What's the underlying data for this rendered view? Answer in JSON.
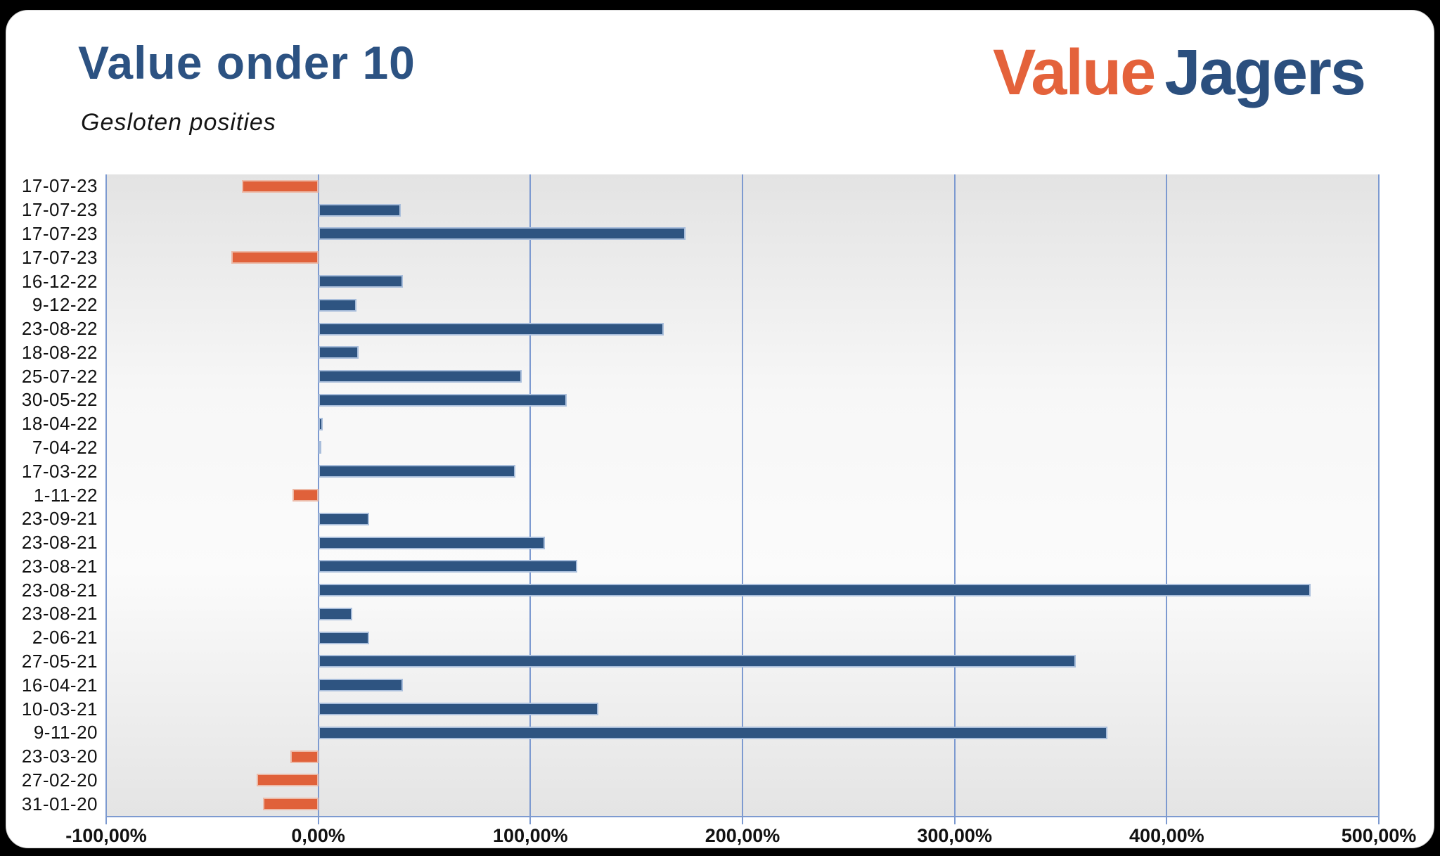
{
  "header": {
    "title": "Value onder 10",
    "subtitle": "Gesloten posities",
    "logo": {
      "part1": "Value",
      "part2": "Jagers"
    }
  },
  "chart_data": {
    "type": "bar",
    "orientation": "horizontal",
    "title": "Value onder 10",
    "subtitle": "Gesloten posities",
    "unit": "percent",
    "categories": [
      "17-07-23",
      "17-07-23",
      "17-07-23",
      "17-07-23",
      "16-12-22",
      "9-12-22",
      "23-08-22",
      "18-08-22",
      "25-07-22",
      "30-05-22",
      "18-04-22",
      "7-04-22",
      "17-03-22",
      "1-11-22",
      "23-09-21",
      "23-08-21",
      "23-08-21",
      "23-08-21",
      "23-08-21",
      "2-06-21",
      "27-05-21",
      "16-04-21",
      "10-03-21",
      "9-11-20",
      "23-03-20",
      "27-02-20",
      "31-01-20"
    ],
    "values": [
      -36,
      39,
      173,
      -41,
      40,
      18,
      163,
      19,
      96,
      117,
      2,
      1,
      93,
      -12,
      24,
      107,
      122,
      468,
      16,
      24,
      357,
      40,
      132,
      372,
      -13,
      -29,
      -26
    ],
    "x_axis": {
      "min": -100,
      "max": 500,
      "tick_step": 100,
      "tick_labels": [
        "-100,00%",
        "0,00%",
        "100,00%",
        "200,00%",
        "300,00%",
        "400,00%",
        "500,00%"
      ]
    },
    "grid": true,
    "legend": "none",
    "colors": {
      "positive_bar": "#2E5481",
      "positive_border": "#A9BEDB",
      "negative_bar": "#E0613A",
      "negative_border": "#ECBAA8",
      "gridline": "#7D9AD0",
      "title": "#2C5282",
      "logo_orange": "#E4623B",
      "logo_blue": "#2B4F7E"
    }
  }
}
